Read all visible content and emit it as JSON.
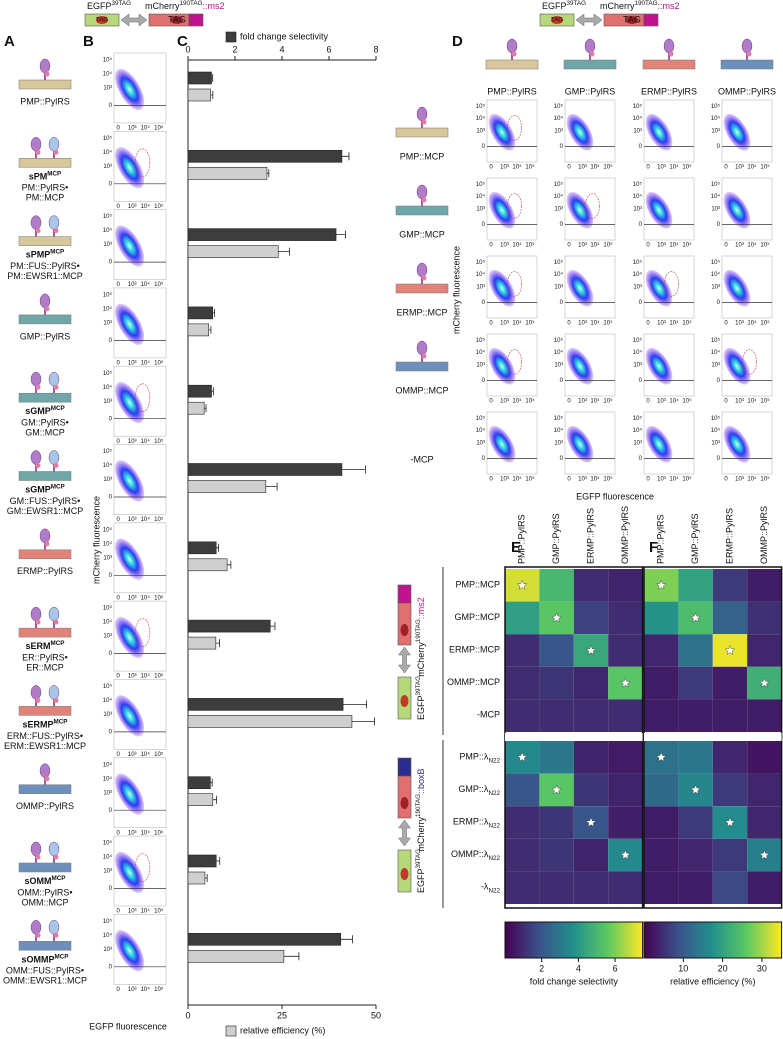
{
  "panel_letters": [
    "A",
    "B",
    "C",
    "D",
    "E",
    "F"
  ],
  "construct": {
    "egfp": "EGFP",
    "egfp_sup": "39TAG",
    "mcherry": "mCherry",
    "mcherry_sup": "190TAG",
    "ms2": "::ms2",
    "boxb": "::boxB",
    "tag": "TAG"
  },
  "panel_a": {
    "rows": [
      {
        "name": "PMP::PylRS"
      },
      {
        "name": "sPM",
        "sup": "MCP",
        "lines": [
          "PM::PylRS•",
          "PM::MCP"
        ]
      },
      {
        "name": "sPMP",
        "sup": "MCP",
        "lines": [
          "PM::FUS::PylRS•",
          "PM::EWSR1::MCP"
        ]
      },
      {
        "name": "GMP::PylRS"
      },
      {
        "name": "sGMP",
        "sup": "MCP",
        "lines": [
          "GM::PylRS•",
          "GM::MCP"
        ]
      },
      {
        "name": "sGMP",
        "sup": "MCP",
        "lines": [
          "GM::FUS::PylRS•",
          "GM::EWSR1::MCP"
        ]
      },
      {
        "name": "ERMP::PylRS"
      },
      {
        "name": "sERM",
        "sup": "MCP",
        "lines": [
          "ER::PylRS•",
          "ER::MCP"
        ]
      },
      {
        "name": "sERMP",
        "sup": "MCP",
        "lines": [
          "ERM::FUS::PylRS•",
          "ERM::EWSR1::MCP"
        ]
      },
      {
        "name": "OMMP::PylRS"
      },
      {
        "name": "sOMM",
        "sup": "MCP",
        "lines": [
          "OMM::PylRS•",
          "OMM::MCP"
        ]
      },
      {
        "name": "sOMMP",
        "sup": "MCP",
        "lines": [
          "OMM::FUS::PylRS•",
          "OMM::EWSR1::MCP"
        ]
      }
    ]
  },
  "flow_axis": {
    "yticks": [
      "10⁵",
      "10⁴",
      "10³",
      "0"
    ],
    "xticks": [
      "0",
      "10³",
      "10⁴",
      "10⁵"
    ],
    "ylabel": "mCherry fluorescence",
    "xlabel": "EGFP fluorescence"
  },
  "panel_d": {
    "columns": [
      "PMP::PylRS",
      "GMP::PylRS",
      "ERMP::PylRS",
      "OMMP::PylRS"
    ],
    "rows": [
      "PMP::MCP",
      "GMP::MCP",
      "ERMP::MCP",
      "OMMP::MCP",
      "-MCP"
    ]
  },
  "chart_data": [
    {
      "type": "bar",
      "orientation": "horizontal",
      "xlim": [
        0,
        8
      ],
      "xticks": [
        0,
        2,
        4,
        6,
        8
      ],
      "x2lim": [
        0,
        50
      ],
      "x2ticks": [
        0,
        25,
        50
      ],
      "series": [
        {
          "name": "fold change selectivity",
          "color": "#3d3d3d",
          "values": [
            1.0,
            6.55,
            6.3,
            1.05,
            1.0,
            6.55,
            1.2,
            3.5,
            6.6,
            0.95,
            1.2,
            6.5
          ],
          "errors": [
            0.05,
            0.3,
            0.4,
            0.08,
            0.08,
            1.0,
            0.1,
            0.2,
            1.0,
            0.08,
            0.15,
            0.5
          ]
        },
        {
          "name": "relative efficiency (%)",
          "color": "#cfcfcf",
          "axis": "x2",
          "values": [
            6,
            21,
            24,
            5.5,
            4.3,
            20.7,
            10.4,
            7.4,
            43.6,
            6.6,
            4.5,
            25.5
          ],
          "errors": [
            0.6,
            0.5,
            3,
            0.6,
            0.5,
            3,
            1,
            1,
            6,
            1,
            0.6,
            4
          ]
        }
      ]
    },
    {
      "type": "heatmap",
      "columns": [
        "PMP::PylRS",
        "GMP::PylRS",
        "ERMP::PylRS",
        "OMMP::PylRS"
      ],
      "rows": [
        {
          "text": "PMP::MCP"
        },
        {
          "text": "GMP::MCP"
        },
        {
          "text": "ERMP::MCP"
        },
        {
          "text": "OMMP::MCP"
        },
        {
          "text": "-MCP"
        },
        {
          "text": "PMP::λ",
          "sub": "N22"
        },
        {
          "text": "GMP::λ",
          "sub": "N22"
        },
        {
          "text": "ERMP::λ",
          "sub": "N22"
        },
        {
          "text": "OMMP::λ",
          "sub": "N22"
        },
        {
          "text": "-λ",
          "sub": "N22"
        }
      ],
      "values": [
        [
          7,
          5,
          1,
          0.8
        ],
        [
          4.2,
          5.5,
          1.5,
          1
        ],
        [
          1,
          2,
          4.5,
          1
        ],
        [
          1,
          1.2,
          0.9,
          5.5
        ],
        [
          1,
          1,
          1,
          1
        ],
        [
          3.5,
          3,
          0.8,
          0.6
        ],
        [
          2,
          5.5,
          1.2,
          0.8
        ],
        [
          1,
          1.2,
          2,
          0.7
        ],
        [
          1,
          1.2,
          0.8,
          3.5
        ],
        [
          1,
          1,
          1,
          1
        ]
      ],
      "zlim": [
        0,
        7.5
      ],
      "zticks": [
        2,
        4,
        6
      ],
      "colorbar_label": "fold change selectivity"
    },
    {
      "type": "heatmap",
      "columns": [
        "PMP::PylRS",
        "GMP::PylRS",
        "ERMP::PylRS",
        "OMMP::PylRS"
      ],
      "values": [
        [
          28,
          20,
          6,
          3
        ],
        [
          18,
          24,
          11,
          5
        ],
        [
          4,
          13,
          34,
          4
        ],
        [
          3,
          6,
          3,
          22
        ],
        [
          3,
          3,
          3,
          3
        ],
        [
          13,
          14,
          4,
          2
        ],
        [
          12,
          16,
          6,
          4
        ],
        [
          3,
          6,
          17,
          4
        ],
        [
          3,
          4,
          6,
          15
        ],
        [
          3,
          3,
          8,
          3
        ]
      ],
      "zlim": [
        0,
        35
      ],
      "zticks": [
        10,
        20,
        30
      ],
      "colorbar_label": "relative efficiency (%)"
    }
  ]
}
